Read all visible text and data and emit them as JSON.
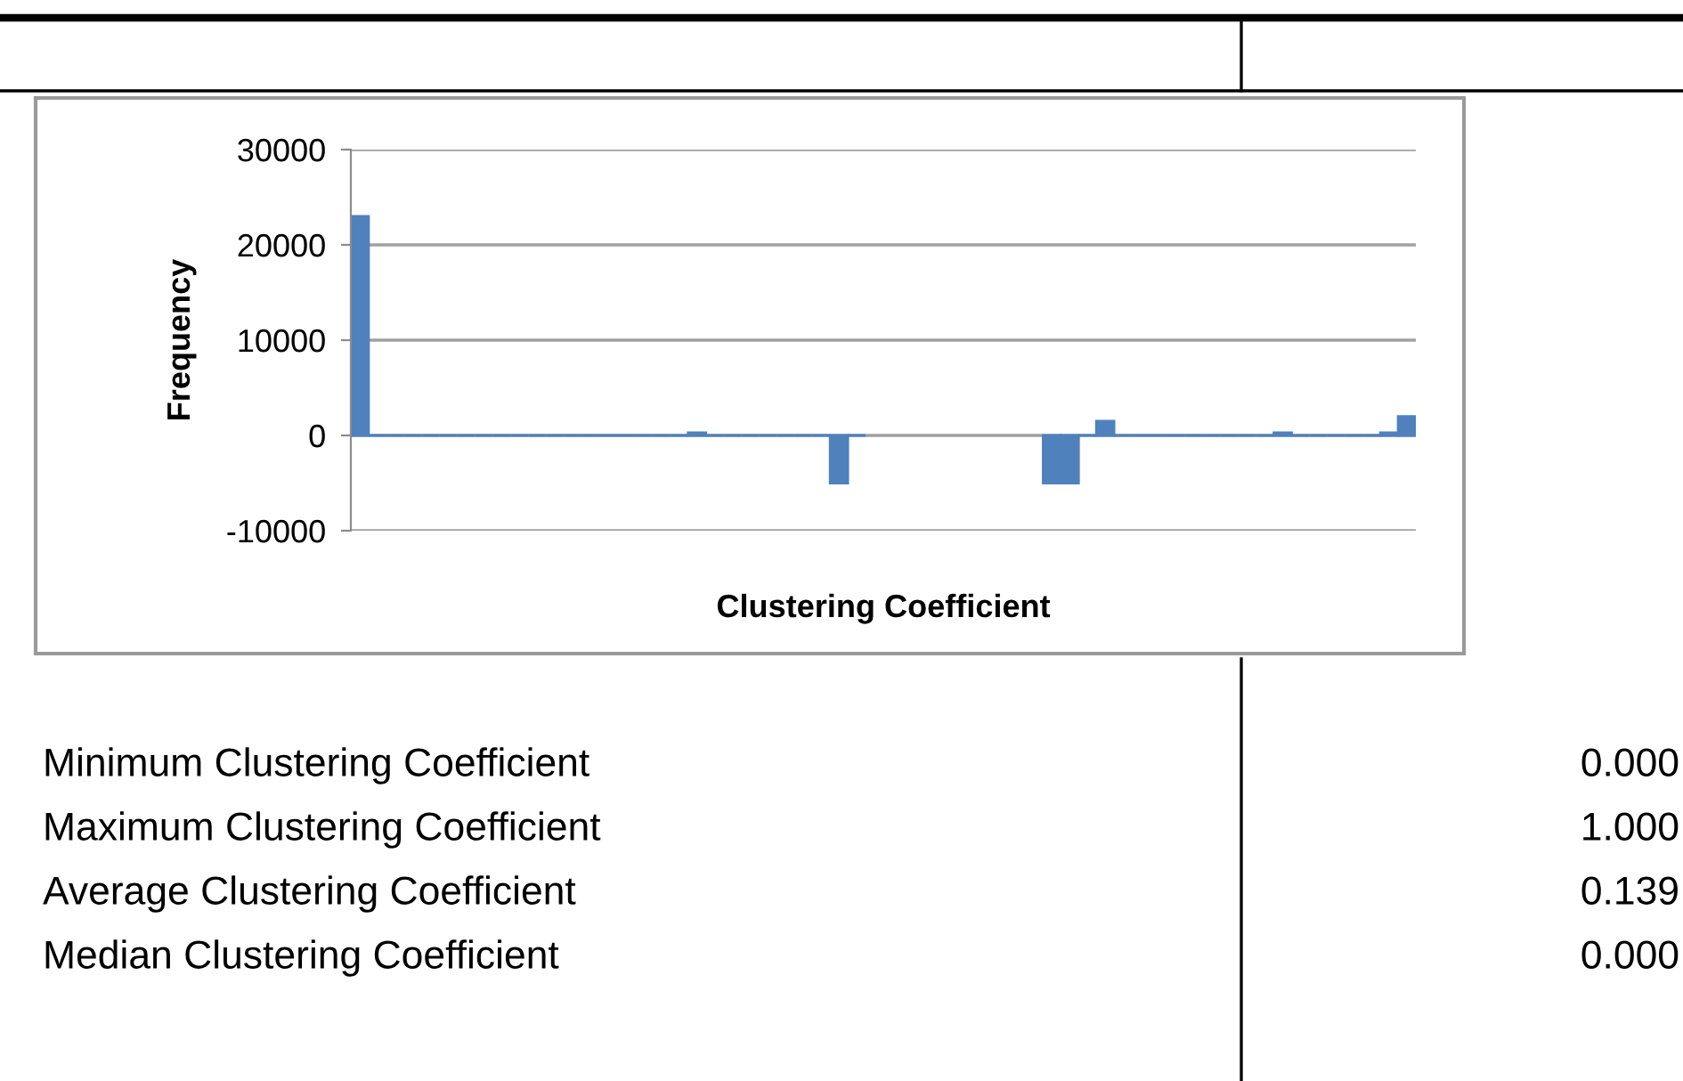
{
  "chart_data": {
    "type": "bar",
    "xlabel": "Clustering Coefficient",
    "ylabel": "Frequency",
    "categories": [
      null,
      null,
      null,
      null,
      null,
      null,
      null,
      null,
      null,
      null,
      null,
      null,
      null,
      null,
      null,
      null,
      null,
      null,
      null,
      null,
      null,
      null,
      null,
      null,
      null,
      null,
      null,
      null,
      null,
      null,
      null,
      null,
      null,
      null,
      null,
      null,
      null,
      null,
      null,
      null,
      null,
      null,
      null,
      null,
      null,
      null,
      null,
      null,
      null,
      null,
      null,
      null,
      null,
      null,
      null,
      null,
      null,
      null,
      null,
      null
    ],
    "values": [
      23000,
      0,
      0,
      0,
      0,
      0,
      0,
      0,
      0,
      0,
      0,
      0,
      0,
      0,
      0,
      0,
      0,
      0,
      0,
      300,
      0,
      0,
      0,
      0,
      0,
      0,
      0,
      -5000,
      0,
      null,
      null,
      null,
      null,
      null,
      null,
      null,
      null,
      null,
      null,
      -5000,
      -5000,
      0,
      1500,
      0,
      0,
      0,
      0,
      0,
      0,
      0,
      0,
      0,
      300,
      0,
      0,
      0,
      0,
      0,
      300,
      2000
    ],
    "color": "#4f81bd",
    "ylim": [
      -10000,
      30000
    ],
    "yticks": [
      -10000,
      0,
      10000,
      20000,
      30000
    ],
    "grid": "y",
    "annotations": [
      "Minimum Clustering Coefficient",
      "0.000",
      "Maximum Clustering Coefficient",
      "1.000",
      "Average Clustering Coefficient",
      "0.139",
      "Median Clustering Coefficient",
      "0.000"
    ]
  }
}
